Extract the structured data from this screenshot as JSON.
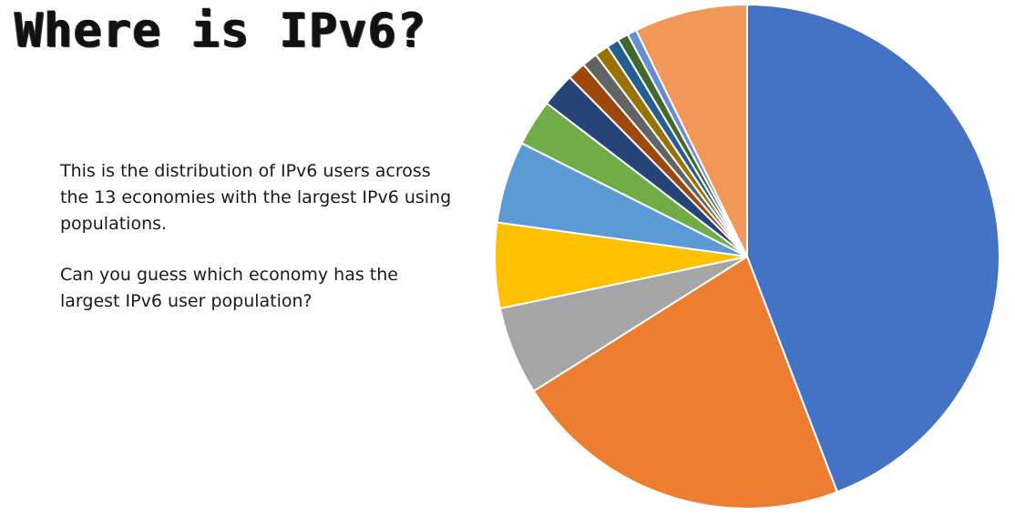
{
  "slide": {
    "title": "Where is IPv6?",
    "paragraph_1": "This is the distribution of IPv6 users across the 13 economies with the largest IPv6 using populations.",
    "paragraph_2": "Can you guess which economy has the largest IPv6 user population?"
  },
  "chart_data": {
    "type": "pie",
    "title": "",
    "start_angle_deg": 0,
    "direction": "clockwise",
    "slices": [
      {
        "value": 44.5,
        "color": "#4472C4"
      },
      {
        "value": 22.0,
        "color": "#ED7D31"
      },
      {
        "value": 5.7,
        "color": "#A5A5A5"
      },
      {
        "value": 5.5,
        "color": "#FFC000"
      },
      {
        "value": 5.3,
        "color": "#5B9BD5"
      },
      {
        "value": 3.0,
        "color": "#70AD47"
      },
      {
        "value": 2.2,
        "color": "#264478"
      },
      {
        "value": 1.2,
        "color": "#9E480E"
      },
      {
        "value": 1.0,
        "color": "#636363"
      },
      {
        "value": 0.9,
        "color": "#997300"
      },
      {
        "value": 0.8,
        "color": "#255E91"
      },
      {
        "value": 0.7,
        "color": "#43682B"
      },
      {
        "value": 0.6,
        "color": "#698ED0"
      },
      {
        "value": 7.3,
        "color": "#F1975A"
      }
    ]
  }
}
